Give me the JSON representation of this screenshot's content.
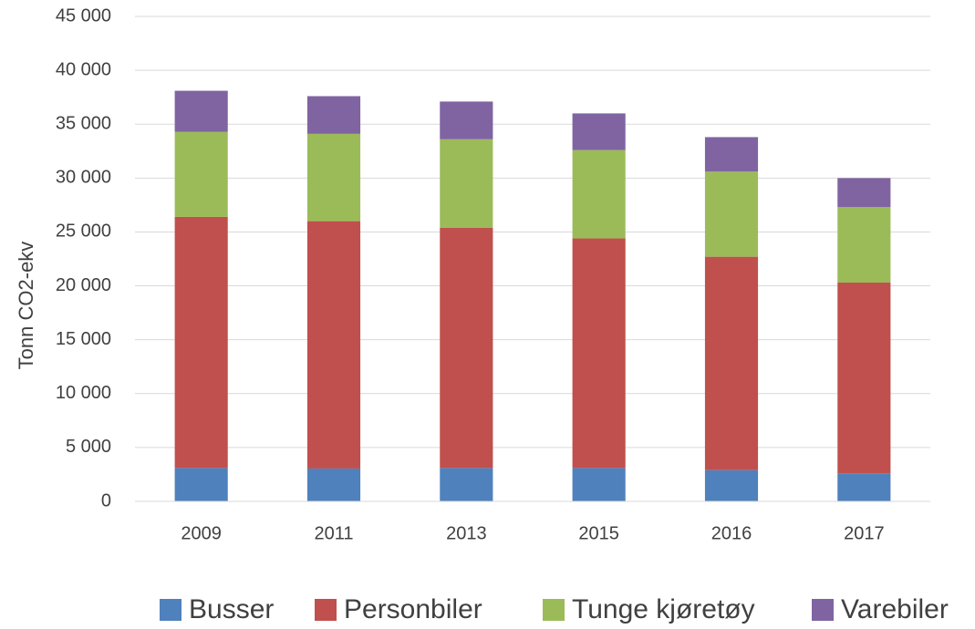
{
  "chart_data": {
    "type": "stacked_bar",
    "ylabel": "Tonn CO2-ekv",
    "categories": [
      "2009",
      "2011",
      "2013",
      "2015",
      "2016",
      "2017"
    ],
    "series": [
      {
        "name": "Busser",
        "color": "#4f81bd",
        "values": [
          3100,
          3050,
          3100,
          3100,
          2900,
          2600
        ]
      },
      {
        "name": "Personbiler",
        "color": "#c0504d",
        "values": [
          23300,
          22950,
          22300,
          21300,
          19800,
          17700
        ]
      },
      {
        "name": "Tunge kjøretøy",
        "color": "#9bbb59",
        "values": [
          7900,
          8100,
          8200,
          8200,
          7900,
          7000
        ]
      },
      {
        "name": "Varebiler",
        "color": "#8064a2",
        "values": [
          3800,
          3500,
          3500,
          3400,
          3200,
          2700
        ]
      }
    ],
    "ylim": [
      0,
      45000
    ],
    "yticks": [
      0,
      {
        "value": 5000,
        "label": "5 000"
      },
      {
        "value": 10000,
        "label": "10 000"
      },
      {
        "value": 15000,
        "label": "15 000"
      },
      {
        "value": 20000,
        "label": "20 000"
      },
      {
        "value": 25000,
        "label": "25 000"
      },
      {
        "value": 30000,
        "label": "30 000"
      },
      {
        "value": 35000,
        "label": "35 000"
      },
      {
        "value": 40000,
        "label": "40 000"
      },
      {
        "value": 45000,
        "label": "45 000"
      }
    ],
    "grid": true,
    "legend": "bottom"
  }
}
